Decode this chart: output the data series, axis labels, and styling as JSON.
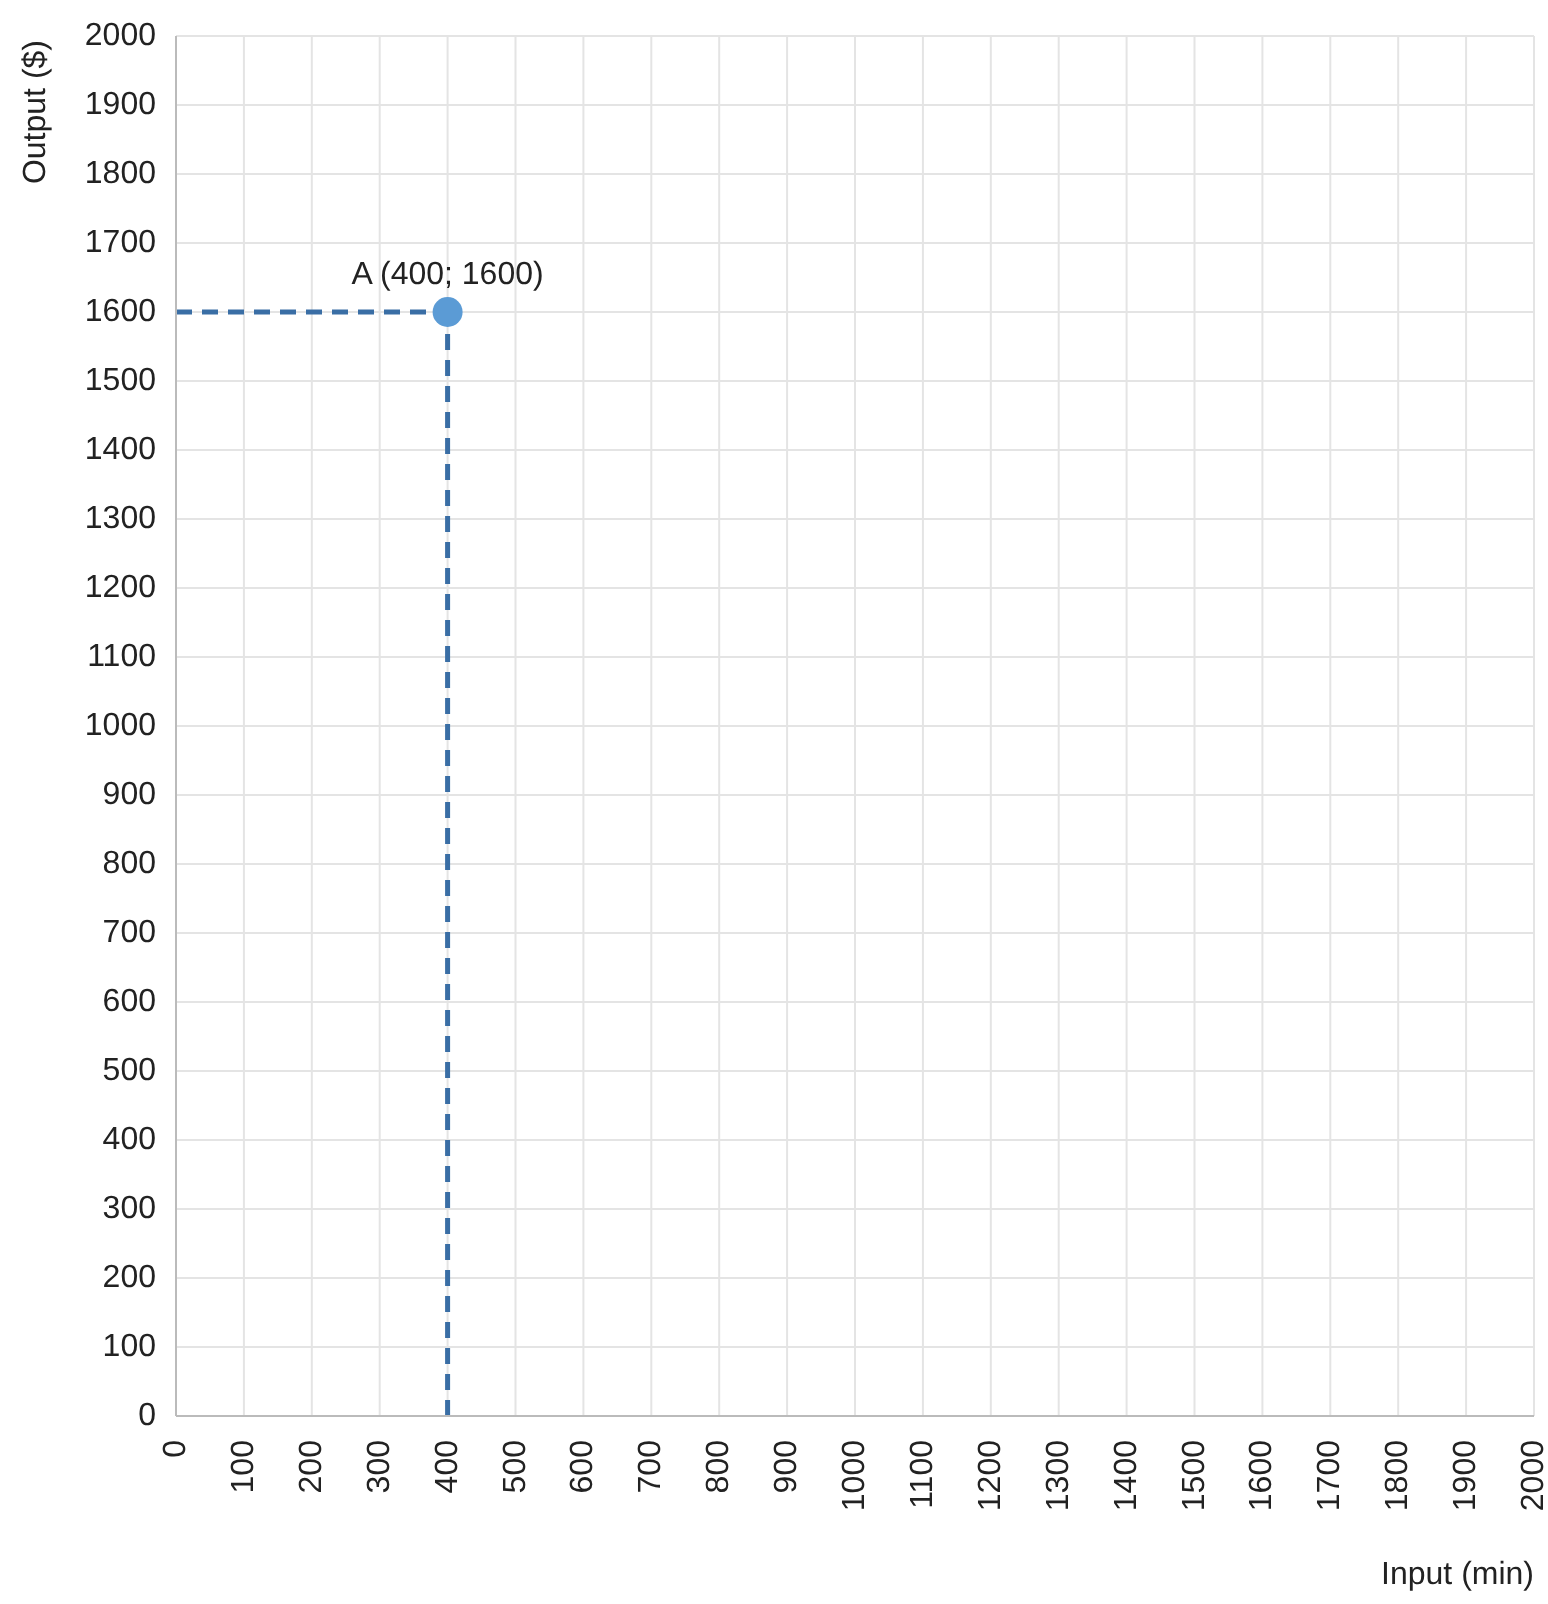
{
  "chart_data": {
    "type": "scatter",
    "xlabel": "Input (min)",
    "ylabel": "Output ($)",
    "x": [
      400
    ],
    "series": [
      {
        "color": "#5b9bd5",
        "values": [
          1600
        ]
      }
    ],
    "xlim": [
      0,
      2000
    ],
    "xticks": [
      0,
      100,
      200,
      300,
      400,
      500,
      600,
      700,
      800,
      900,
      1000,
      1100,
      1200,
      1300,
      1400,
      1500,
      1600,
      1700,
      1800,
      1900,
      2000
    ],
    "ylim": [
      0,
      2000
    ],
    "yticks": [
      0,
      100,
      200,
      300,
      400,
      500,
      600,
      700,
      800,
      900,
      1000,
      1100,
      1200,
      1300,
      1400,
      1500,
      1600,
      1700,
      1800,
      1900,
      2000
    ],
    "grid": true,
    "marker": "circle",
    "ref_lines": [
      {
        "axis": "x",
        "value": 400,
        "color": "#3a6ea5",
        "line_style": "dashed"
      },
      {
        "axis": "y",
        "value": 1600,
        "color": "#3a6ea5",
        "line_style": "dashed"
      }
    ],
    "annotations": [
      {
        "text": "A (400; 1600)",
        "x": 400,
        "y": 1600
      }
    ]
  }
}
